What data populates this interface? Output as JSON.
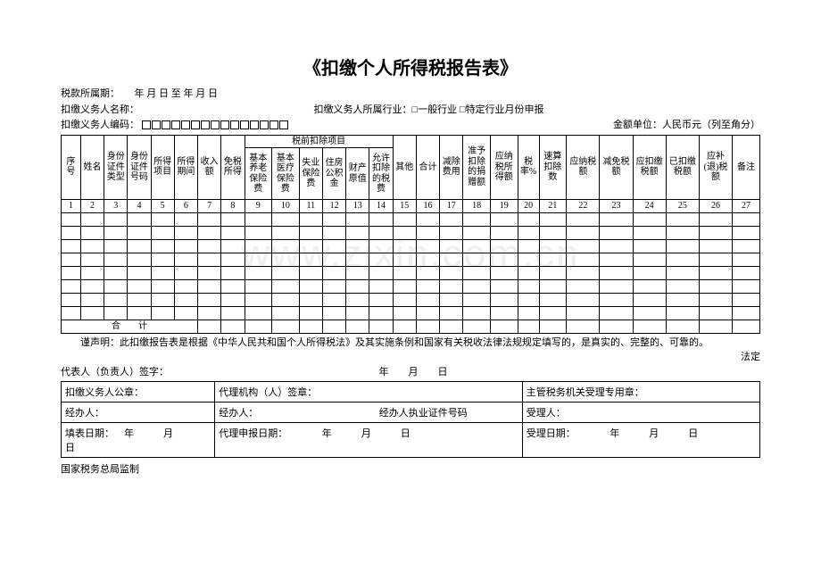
{
  "title": "《扣缴个人所得税报告表》",
  "meta": {
    "period_label": "税款所属期：",
    "period_value": "年  月  日  至    年  月  日",
    "agent_name_label": "扣缴义务人名称：",
    "industry_label": "扣缴义务人所属行业：□一般行业 □特定行业月份申报",
    "agent_code_label": "扣缴义务人编码：",
    "unit_label": "金额单位：人民币元（列至角分）"
  },
  "columns": {
    "c1": "序号",
    "c2": "姓名",
    "c3": "身份证件类型",
    "c4": "身份证件号码",
    "c5": "所得项目",
    "c6": "所得期间",
    "c7": "收入额",
    "c8": "免税所得",
    "group9_14": "税前扣除项目",
    "c9": "基本养老保险费",
    "c10": "基本医疗保险费",
    "c11": "失业保险费",
    "c12": "住房公积金",
    "c13": "财产原值",
    "c14": "允许扣除的税费",
    "c15": "其他",
    "c16": "合计",
    "c17": "减除费用",
    "c18": "准予扣除的捐赠额",
    "c19": "应纳税所得额",
    "c20": "税率%",
    "c21": "速算扣除数",
    "c22": "应纳税额",
    "c23": "减免税额",
    "c24": "应扣缴税额",
    "c25": "已扣缴税额",
    "c26": "应补(退)税额",
    "c27": "备注",
    "total": "合　　计"
  },
  "nums": [
    "1",
    "2",
    "3",
    "4",
    "5",
    "6",
    "7",
    "8",
    "9",
    "10",
    "11",
    "12",
    "13",
    "14",
    "15",
    "16",
    "17",
    "18",
    "19",
    "20",
    "21",
    "22",
    "23",
    "24",
    "25",
    "26",
    "27"
  ],
  "declare": {
    "line1": "谨声明：此扣缴报告表是根据《中华人民共和国个人所得税法》及其实施条例和国家有关税收法律法规规定填写的，是真实的、完整的、可靠的。",
    "line2": "法定",
    "rep_sign": "代表人（负责人）签字：",
    "rep_date": "年　　月　　日"
  },
  "bottom": {
    "b1": "扣缴义务人公章：",
    "b2": "代理机构（人）签章：",
    "b3": "主管税务机关受理专用章：",
    "b4": "经办人：",
    "b5": "经办人：",
    "b5b": "经办人执业证件号码",
    "b6": "受理人：",
    "b7a": "填表日期：",
    "b7b": "年　　　月　　　日",
    "b8": "代理申报日期：　　　　年　　　月　　　日",
    "b9": "受理日期：　　　　年　　　月　　　日"
  },
  "monitor": "国家税务总局监制",
  "watermark": "www.zixin.com.cn",
  "box_count": 15,
  "data_rows": 8
}
